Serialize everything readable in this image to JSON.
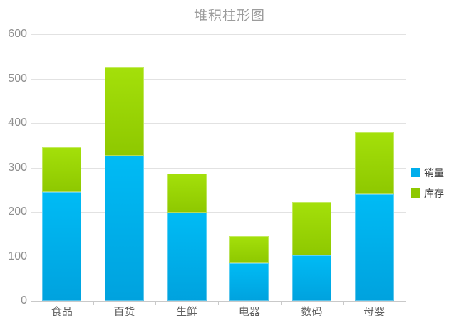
{
  "chart_data": {
    "type": "bar",
    "stacked": true,
    "title": "堆积柱形图",
    "categories": [
      "食品",
      "百货",
      "生鲜",
      "电器",
      "数码",
      "母婴"
    ],
    "series": [
      {
        "name": "销量",
        "color": "#00aeec",
        "gradient_top": "#00bbf5",
        "gradient_bottom": "#00a2de",
        "values": [
          245,
          327,
          198,
          85,
          102,
          240
        ]
      },
      {
        "name": "库存",
        "color": "#8ec800",
        "gradient_top": "#a4e00a",
        "gradient_bottom": "#8ec800",
        "values": [
          100,
          200,
          88,
          60,
          120,
          140
        ]
      }
    ],
    "xlabel": "",
    "ylabel": "",
    "ylim": [
      0,
      600
    ],
    "y_ticks": [
      0,
      100,
      200,
      300,
      400,
      500,
      600
    ],
    "grid": true,
    "legend_position": "right"
  }
}
